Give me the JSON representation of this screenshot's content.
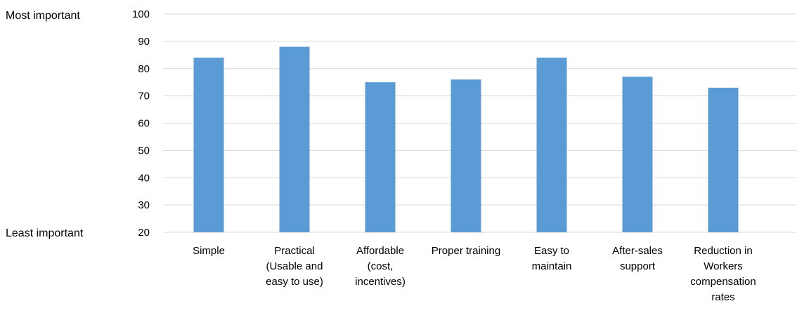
{
  "chart_data": {
    "type": "bar",
    "title": "",
    "xlabel": "",
    "ylabel": "",
    "top_label": "Most important",
    "bottom_label": "Least important",
    "categories": [
      [
        "Simple"
      ],
      [
        "Practical",
        "(Usable and",
        "easy to use)"
      ],
      [
        "Affordable",
        "(cost,",
        "incentives)"
      ],
      [
        "Proper training"
      ],
      [
        "Easy to",
        "maintain"
      ],
      [
        "After-sales",
        "support"
      ],
      [
        "Reduction in",
        "Workers",
        "compensation",
        "rates"
      ]
    ],
    "values": [
      84,
      88,
      75,
      76,
      84,
      77,
      73
    ],
    "ylim": [
      20,
      100
    ],
    "yticks": [
      20,
      30,
      40,
      50,
      60,
      70,
      80,
      90,
      100
    ],
    "grid": true,
    "bar_color": "#5b9bd5",
    "grid_color": "#d9d9d9"
  }
}
